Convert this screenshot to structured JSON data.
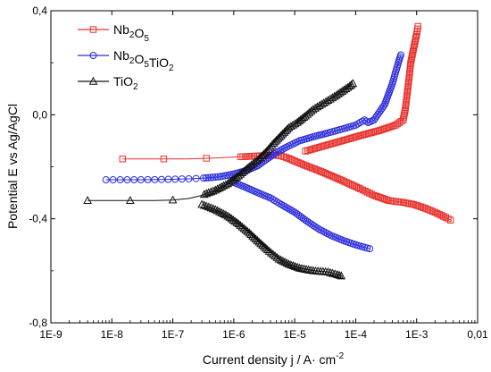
{
  "chart_data": {
    "type": "line",
    "x_scale": "log",
    "xlim": [
      1e-09,
      0.01
    ],
    "ylim": [
      -0.8,
      0.4
    ],
    "x_ticks": [
      {
        "value": 1e-09,
        "label": "1E-9"
      },
      {
        "value": 1e-08,
        "label": "1E-8"
      },
      {
        "value": 1e-07,
        "label": "1E-7"
      },
      {
        "value": 1e-06,
        "label": "1E-6"
      },
      {
        "value": 1e-05,
        "label": "1E-5"
      },
      {
        "value": 0.0001,
        "label": "1E-4"
      },
      {
        "value": 0.001,
        "label": "1E-3"
      },
      {
        "value": 0.01,
        "label": "0,01"
      }
    ],
    "y_ticks": [
      {
        "value": 0.4,
        "label": "0,4"
      },
      {
        "value": 0.0,
        "label": "0,0"
      },
      {
        "value": -0.4,
        "label": "-0,4"
      },
      {
        "value": -0.8,
        "label": "-0,8"
      }
    ],
    "xlabel_main": "Current density j / A· cm",
    "xlabel_sup": "-2",
    "ylabel": "Potential E vs Ag/AgCl",
    "legend_position": "top-left",
    "series": [
      {
        "legend_parts": [
          [
            "Nb",
            ""
          ],
          [
            "2",
            "sub"
          ],
          [
            "O",
            ""
          ],
          [
            "5",
            "sub"
          ]
        ],
        "color": "#e8322d",
        "marker": "square",
        "points": [
          [
            1.5e-08,
            -0.17
          ],
          [
            6.5e-08,
            -0.17
          ],
          [
            1.6e-07,
            -0.17
          ],
          [
            3e-07,
            -0.168
          ],
          [
            5e-07,
            -0.166
          ],
          [
            8e-07,
            -0.164
          ],
          [
            1.2e-06,
            -0.162
          ],
          [
            1.8e-06,
            -0.16
          ],
          [
            2.6e-06,
            -0.158
          ],
          [
            3.5e-06,
            -0.156
          ],
          [
            4.5e-06,
            -0.155
          ],
          [
            6e-06,
            -0.158
          ],
          [
            8e-06,
            -0.168
          ],
          [
            1e-05,
            -0.178
          ],
          [
            1.5e-05,
            -0.195
          ],
          [
            2.5e-05,
            -0.215
          ],
          [
            4e-05,
            -0.235
          ],
          [
            7e-05,
            -0.26
          ],
          [
            0.00012,
            -0.285
          ],
          [
            0.0002,
            -0.31
          ],
          [
            0.00035,
            -0.33
          ],
          [
            0.0006,
            -0.337
          ],
          [
            0.0009,
            -0.345
          ],
          [
            0.0014,
            -0.36
          ],
          [
            0.002,
            -0.375
          ],
          [
            0.003,
            -0.395
          ],
          [
            0.0036,
            -0.405
          ]
        ],
        "anodic": [
          [
            1.5e-05,
            -0.14
          ],
          [
            3e-05,
            -0.12
          ],
          [
            6e-05,
            -0.1
          ],
          [
            0.00012,
            -0.08
          ],
          [
            0.00025,
            -0.06
          ],
          [
            0.00045,
            -0.04
          ],
          [
            0.0006,
            -0.02
          ],
          [
            0.00065,
            0.02
          ],
          [
            0.0007,
            0.08
          ],
          [
            0.00075,
            0.14
          ],
          [
            0.0008,
            0.2
          ],
          [
            0.0009,
            0.26
          ],
          [
            0.001,
            0.31
          ],
          [
            0.00105,
            0.34
          ]
        ]
      },
      {
        "legend_parts": [
          [
            "Nb",
            ""
          ],
          [
            "2",
            "sub"
          ],
          [
            "O",
            ""
          ],
          [
            "5",
            "sub"
          ],
          [
            "TiO",
            ""
          ],
          [
            "2",
            "sub"
          ]
        ],
        "color": "#2b2bdc",
        "marker": "circle",
        "points": [
          [
            8e-09,
            -0.25
          ],
          [
            1.5e-08,
            -0.25
          ],
          [
            3e-08,
            -0.25
          ],
          [
            6e-08,
            -0.249
          ],
          [
            1e-07,
            -0.248
          ],
          [
            2e-07,
            -0.246
          ],
          [
            3.5e-07,
            -0.243
          ],
          [
            6e-07,
            -0.238
          ],
          [
            1e-06,
            -0.228
          ],
          [
            1.6e-06,
            -0.215
          ],
          [
            2.5e-06,
            -0.195
          ],
          [
            3.5e-06,
            -0.17
          ],
          [
            5e-06,
            -0.145
          ],
          [
            8e-06,
            -0.12
          ],
          [
            1.2e-05,
            -0.1
          ],
          [
            2e-05,
            -0.085
          ],
          [
            3.5e-05,
            -0.07
          ],
          [
            6e-05,
            -0.055
          ],
          [
            0.0001,
            -0.04
          ],
          [
            0.00014,
            -0.02
          ],
          [
            0.00016,
            -0.03
          ],
          [
            0.0002,
            -0.02
          ],
          [
            0.0003,
            0.04
          ],
          [
            0.0004,
            0.12
          ],
          [
            0.0005,
            0.2
          ],
          [
            0.00055,
            0.23
          ]
        ],
        "cathodic": [
          [
            1e-06,
            -0.26
          ],
          [
            1.6e-06,
            -0.28
          ],
          [
            2.5e-06,
            -0.3
          ],
          [
            4e-06,
            -0.32
          ],
          [
            6e-06,
            -0.345
          ],
          [
            1e-05,
            -0.375
          ],
          [
            1.6e-05,
            -0.41
          ],
          [
            2.5e-05,
            -0.44
          ],
          [
            4e-05,
            -0.465
          ],
          [
            6.5e-05,
            -0.485
          ],
          [
            0.0001,
            -0.5
          ],
          [
            0.00014,
            -0.51
          ],
          [
            0.00017,
            -0.515
          ]
        ]
      },
      {
        "legend_parts": [
          [
            "TiO",
            ""
          ],
          [
            "2",
            "sub"
          ]
        ],
        "color": "#111111",
        "marker": "triangle",
        "points": [
          [
            4e-09,
            -0.33
          ],
          [
            8e-09,
            -0.33
          ],
          [
            2e-08,
            -0.33
          ],
          [
            5e-08,
            -0.33
          ],
          [
            1e-07,
            -0.328
          ],
          [
            1.8e-07,
            -0.322
          ],
          [
            3e-07,
            -0.31
          ],
          [
            5e-07,
            -0.29
          ],
          [
            8e-07,
            -0.265
          ],
          [
            1.2e-06,
            -0.235
          ],
          [
            1.8e-06,
            -0.2
          ],
          [
            2.6e-06,
            -0.17
          ],
          [
            3.5e-06,
            -0.14
          ],
          [
            4.5e-06,
            -0.11
          ],
          [
            6e-06,
            -0.08
          ],
          [
            8e-06,
            -0.05
          ],
          [
            1.1e-05,
            -0.03
          ],
          [
            1.5e-05,
            -0.005
          ],
          [
            2e-05,
            0.02
          ],
          [
            3e-05,
            0.045
          ],
          [
            4.5e-05,
            0.07
          ],
          [
            6e-05,
            0.09
          ],
          [
            8e-05,
            0.11
          ],
          [
            9e-05,
            0.12
          ]
        ],
        "cathodic": [
          [
            3e-07,
            -0.345
          ],
          [
            5e-07,
            -0.365
          ],
          [
            8e-07,
            -0.39
          ],
          [
            1.2e-06,
            -0.42
          ],
          [
            1.8e-06,
            -0.455
          ],
          [
            2.6e-06,
            -0.49
          ],
          [
            3.8e-06,
            -0.525
          ],
          [
            5.5e-06,
            -0.555
          ],
          [
            8e-06,
            -0.575
          ],
          [
            1.2e-05,
            -0.59
          ],
          [
            2e-05,
            -0.6
          ],
          [
            3.5e-05,
            -0.605
          ],
          [
            5e-05,
            -0.615
          ],
          [
            5.8e-05,
            -0.62
          ]
        ]
      }
    ]
  }
}
